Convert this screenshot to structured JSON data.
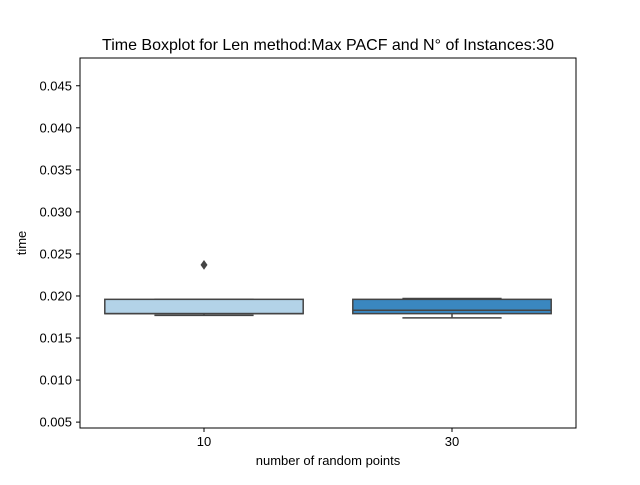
{
  "chart_data": {
    "type": "box",
    "title": "Time Boxplot for Len method:Max PACF and N° of Instances:30",
    "xlabel": "number of random points",
    "ylabel": "time",
    "ylim": [
      0.0043,
      0.0483
    ],
    "yticks": [
      "0.005",
      "0.010",
      "0.015",
      "0.020",
      "0.025",
      "0.030",
      "0.035",
      "0.040",
      "0.045"
    ],
    "categories": [
      "10",
      "30"
    ],
    "boxes": [
      {
        "category": "10",
        "whisker_low": 0.0177,
        "q1": 0.0179,
        "median": 0.0179,
        "q3": 0.0196,
        "whisker_high": 0.0196,
        "outliers": [
          0.0237
        ],
        "color": "#b3d3e8"
      },
      {
        "category": "30",
        "whisker_low": 0.0174,
        "q1": 0.0179,
        "median": 0.0183,
        "q3": 0.0196,
        "whisker_high": 0.0197,
        "outliers": [],
        "color": "#3a87c0"
      }
    ],
    "grid": false,
    "legend": "none"
  }
}
